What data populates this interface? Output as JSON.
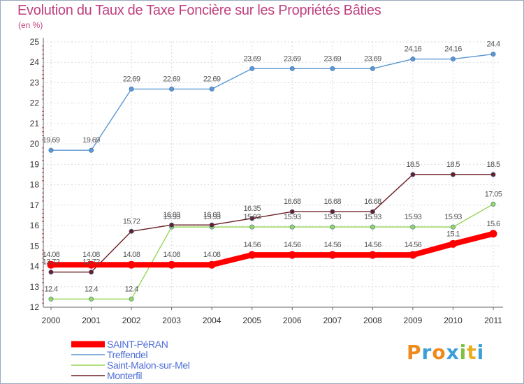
{
  "header": {
    "title": "Evolution du Taux de Taxe Foncière sur les Propriétés Bâties",
    "unit": "(en %)"
  },
  "logo": {
    "text": "Proxiti",
    "letters": [
      "P",
      "r",
      "o",
      "x",
      "i",
      "t",
      "i"
    ],
    "colors": [
      "#f08a1c",
      "#3ba0d8",
      "#f08a1c",
      "#3ba0d8",
      "#7dc242",
      "#e8b020",
      "#3ba0d8"
    ]
  },
  "chart_data": {
    "type": "line",
    "title": "Evolution du Taux de Taxe Foncière sur les Propriétés Bâties",
    "ylabel": "(en %)",
    "xlabel": "",
    "x": [
      "2000",
      "2001",
      "2002",
      "2003",
      "2004",
      "2005",
      "2006",
      "2007",
      "2008",
      "2009",
      "2010",
      "2011"
    ],
    "ylim": [
      12,
      25
    ],
    "yticks": [
      "12",
      "13",
      "14",
      "15",
      "16",
      "17",
      "18",
      "19",
      "20",
      "21",
      "22",
      "23",
      "24",
      "25"
    ],
    "grid": true,
    "legend_position": "bottom-left",
    "series": [
      {
        "name": "SAINT-PéRAN",
        "color": "#ff0000",
        "width": 8,
        "values": [
          14.08,
          14.08,
          14.08,
          14.08,
          14.08,
          14.56,
          14.56,
          14.56,
          14.56,
          14.56,
          15.1,
          15.6
        ],
        "labels": [
          "14.08",
          "14.08",
          "14.08",
          "14.08",
          "14.08",
          "14.56",
          "14.56",
          "14.56",
          "14.56",
          "14.56",
          "15.1",
          "15.6"
        ]
      },
      {
        "name": "Treffendel",
        "color": "#5c97d2",
        "width": 1.4,
        "values": [
          19.69,
          19.69,
          22.69,
          22.69,
          22.69,
          23.69,
          23.69,
          23.69,
          23.69,
          24.16,
          24.16,
          24.4
        ],
        "labels": [
          "19.69",
          "19.69",
          "22.69",
          "22.69",
          "22.69",
          "23.69",
          "23.69",
          "23.69",
          "23.69",
          "24.16",
          "24.16",
          "24.4"
        ]
      },
      {
        "name": "Saint-Malon-sur-Mel",
        "color": "#99d65a",
        "width": 1.4,
        "values": [
          12.4,
          12.4,
          12.4,
          15.93,
          15.93,
          15.93,
          15.93,
          15.93,
          15.93,
          15.93,
          15.93,
          17.05
        ],
        "labels": [
          "12.4",
          "12.4",
          "12.4",
          "15.93",
          "15.93",
          "15.93",
          "15.93",
          "15.93",
          "15.93",
          "15.93",
          "15.93",
          "17.05"
        ]
      },
      {
        "name": "Monterfil",
        "color": "#6b1e24",
        "width": 1.4,
        "values": [
          13.72,
          13.72,
          15.72,
          16.03,
          16.03,
          16.35,
          16.68,
          16.68,
          16.68,
          18.5,
          18.5,
          18.5
        ],
        "labels": [
          "13.72",
          "13.72",
          "15.72",
          "16.03",
          "16.03",
          "16.35",
          "16.68",
          "16.68",
          "16.68",
          "18.5",
          "18.5",
          "18.5"
        ]
      }
    ]
  }
}
